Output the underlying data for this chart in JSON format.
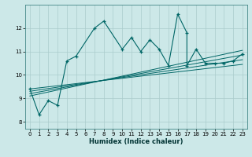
{
  "title": "",
  "xlabel": "Humidex (Indice chaleur)",
  "ylabel": "",
  "bg_color": "#cce8e8",
  "grid_color": "#aacccc",
  "line_color": "#006666",
  "xlim": [
    -0.5,
    23.5
  ],
  "ylim": [
    7.7,
    13.0
  ],
  "xticks": [
    0,
    1,
    2,
    3,
    4,
    5,
    6,
    7,
    8,
    9,
    10,
    11,
    12,
    13,
    14,
    15,
    16,
    17,
    18,
    19,
    20,
    21,
    22,
    23
  ],
  "yticks": [
    8,
    9,
    10,
    11,
    12
  ],
  "series": [
    [
      0,
      9.4
    ],
    [
      1,
      8.3
    ],
    [
      2,
      8.9
    ],
    [
      3,
      8.7
    ],
    [
      4,
      10.6
    ],
    [
      5,
      10.8
    ],
    [
      7,
      12.0
    ],
    [
      8,
      12.3
    ],
    [
      10,
      11.1
    ],
    [
      11,
      11.6
    ],
    [
      12,
      11.0
    ],
    [
      13,
      11.5
    ],
    [
      14,
      11.1
    ],
    [
      15,
      10.4
    ],
    [
      16,
      12.6
    ],
    [
      17,
      11.8
    ],
    [
      17,
      10.4
    ],
    [
      18,
      11.1
    ],
    [
      19,
      10.5
    ],
    [
      20,
      10.5
    ],
    [
      21,
      10.5
    ],
    [
      22,
      10.6
    ],
    [
      23,
      10.9
    ]
  ],
  "regression_lines": [
    {
      "x_start": 0,
      "y_start": 9.1,
      "x_end": 23,
      "y_end": 11.05
    },
    {
      "x_start": 0,
      "y_start": 9.2,
      "x_end": 23,
      "y_end": 10.85
    },
    {
      "x_start": 0,
      "y_start": 9.3,
      "x_end": 23,
      "y_end": 10.65
    },
    {
      "x_start": 0,
      "y_start": 9.4,
      "x_end": 23,
      "y_end": 10.45
    }
  ]
}
